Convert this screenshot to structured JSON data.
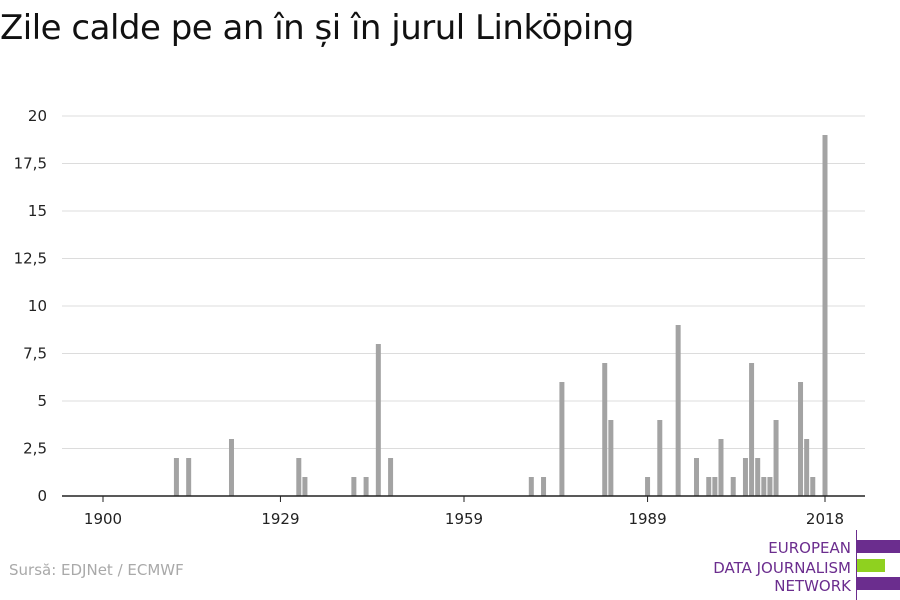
{
  "title": "Zile calde pe an în și în jurul Linköping",
  "source": "Sursă: EDJNet / ECMWF",
  "logo": {
    "lines": [
      "EUROPEAN",
      "DATA JOURNALISM",
      "NETWORK"
    ],
    "colors": {
      "purple": "#6b2d8e",
      "green": "#8fd11f"
    }
  },
  "colors": {
    "bar": "#a3a3a3",
    "grid": "#dcdcdc",
    "axis": "#222222"
  },
  "chart_data": {
    "type": "bar",
    "title": "Zile calde pe an în și în jurul Linköping",
    "xlabel": "",
    "ylabel": "",
    "xlim": [
      1900,
      2018
    ],
    "ylim": [
      0,
      20
    ],
    "x_ticks": [
      1900,
      1929,
      1959,
      1989,
      2018
    ],
    "y_ticks": [
      0,
      2.5,
      5,
      7.5,
      10,
      12.5,
      15,
      17.5,
      20
    ],
    "y_tick_labels": [
      "0",
      "2,5",
      "5",
      "7,5",
      "10",
      "12,5",
      "15",
      "17,5",
      "20"
    ],
    "grid": true,
    "data": [
      {
        "x": 1912,
        "y": 2
      },
      {
        "x": 1914,
        "y": 2
      },
      {
        "x": 1921,
        "y": 3
      },
      {
        "x": 1932,
        "y": 2
      },
      {
        "x": 1933,
        "y": 1
      },
      {
        "x": 1941,
        "y": 1
      },
      {
        "x": 1943,
        "y": 1
      },
      {
        "x": 1945,
        "y": 8
      },
      {
        "x": 1947,
        "y": 2
      },
      {
        "x": 1970,
        "y": 1
      },
      {
        "x": 1972,
        "y": 1
      },
      {
        "x": 1975,
        "y": 6
      },
      {
        "x": 1982,
        "y": 7
      },
      {
        "x": 1983,
        "y": 4
      },
      {
        "x": 1989,
        "y": 1
      },
      {
        "x": 1991,
        "y": 4
      },
      {
        "x": 1994,
        "y": 9
      },
      {
        "x": 1997,
        "y": 2
      },
      {
        "x": 1999,
        "y": 1
      },
      {
        "x": 2000,
        "y": 1
      },
      {
        "x": 2001,
        "y": 3
      },
      {
        "x": 2003,
        "y": 1
      },
      {
        "x": 2005,
        "y": 2
      },
      {
        "x": 2006,
        "y": 7
      },
      {
        "x": 2007,
        "y": 2
      },
      {
        "x": 2008,
        "y": 1
      },
      {
        "x": 2009,
        "y": 1
      },
      {
        "x": 2010,
        "y": 4
      },
      {
        "x": 2014,
        "y": 6
      },
      {
        "x": 2015,
        "y": 3
      },
      {
        "x": 2016,
        "y": 1
      },
      {
        "x": 2018,
        "y": 19
      }
    ]
  }
}
